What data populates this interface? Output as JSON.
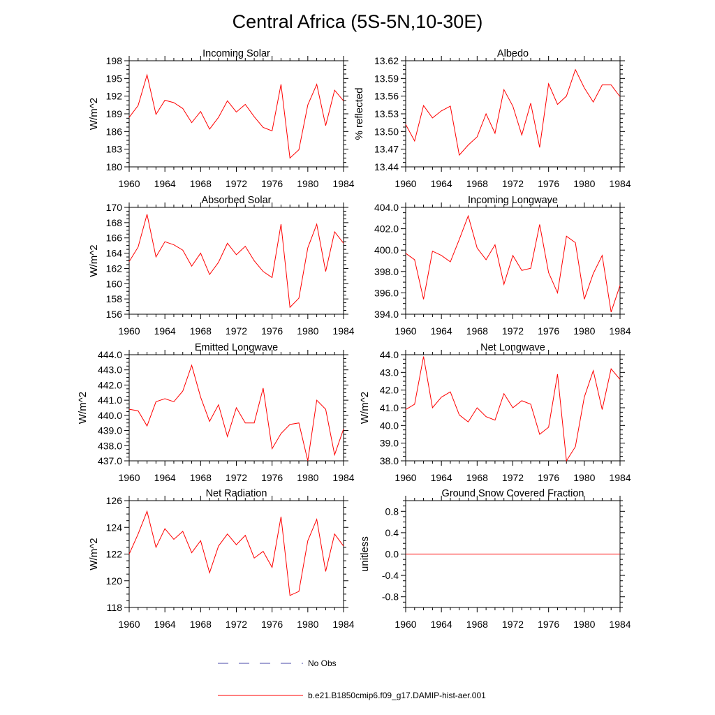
{
  "figure": {
    "title": "Central Africa (5S-5N,10-30E)"
  },
  "legend": {
    "entries": [
      {
        "name": "No Obs",
        "color": "#4a4aa8",
        "dash": true
      },
      {
        "name": "b.e21.B1850cmip6.f09_g17.DAMIP-hist-aer.001",
        "color": "#ff0000",
        "dash": false
      }
    ]
  },
  "chart_data": [
    {
      "type": "line",
      "title": "Incoming Solar",
      "ylabel": "W/m^2",
      "xlim": [
        1960,
        1984
      ],
      "ylim": [
        180,
        198
      ],
      "xticks": [
        1960,
        1964,
        1968,
        1972,
        1976,
        1980,
        1984
      ],
      "yticks": [
        "180",
        "183",
        "186",
        "189",
        "192",
        "195",
        "198"
      ],
      "x": [
        1960,
        1961,
        1962,
        1963,
        1964,
        1965,
        1966,
        1967,
        1968,
        1969,
        1970,
        1971,
        1972,
        1973,
        1974,
        1975,
        1976,
        1977,
        1978,
        1979,
        1980,
        1981,
        1982,
        1983,
        1984
      ],
      "series": [
        {
          "name": "b.e21.B1850cmip6.f09_g17.DAMIP-hist-aer.001",
          "color": "#ff0000",
          "values": [
            188.4,
            190.4,
            195.6,
            188.9,
            191.3,
            190.9,
            189.9,
            187.5,
            189.4,
            186.4,
            188.4,
            191.2,
            189.3,
            190.6,
            188.5,
            186.7,
            186.1,
            194.0,
            181.5,
            182.9,
            190.5,
            194.0,
            187.0,
            193.0,
            191.2
          ]
        }
      ]
    },
    {
      "type": "line",
      "title": "Albedo",
      "ylabel": "% reflected",
      "xlim": [
        1960,
        1984
      ],
      "ylim": [
        13.44,
        13.62
      ],
      "xticks": [
        1960,
        1964,
        1968,
        1972,
        1976,
        1980,
        1984
      ],
      "yticks": [
        "13.44",
        "13.47",
        "13.50",
        "13.53",
        "13.56",
        "13.59",
        "13.62"
      ],
      "x": [
        1960,
        1961,
        1962,
        1963,
        1964,
        1965,
        1966,
        1967,
        1968,
        1969,
        1970,
        1971,
        1972,
        1973,
        1974,
        1975,
        1976,
        1977,
        1978,
        1979,
        1980,
        1981,
        1982,
        1983,
        1984
      ],
      "series": [
        {
          "name": "b.e21.B1850cmip6.f09_g17.DAMIP-hist-aer.001",
          "color": "#ff0000",
          "values": [
            13.512,
            13.484,
            13.544,
            13.523,
            13.535,
            13.543,
            13.46,
            13.477,
            13.491,
            13.53,
            13.497,
            13.571,
            13.543,
            13.494,
            13.548,
            13.473,
            13.581,
            13.546,
            13.56,
            13.605,
            13.574,
            13.55,
            13.579,
            13.579,
            13.559
          ]
        }
      ]
    },
    {
      "type": "line",
      "title": "Absorbed Solar",
      "ylabel": "W/m^2",
      "xlim": [
        1960,
        1984
      ],
      "ylim": [
        156,
        170
      ],
      "xticks": [
        1960,
        1964,
        1968,
        1972,
        1976,
        1980,
        1984
      ],
      "yticks": [
        "156",
        "158",
        "160",
        "162",
        "164",
        "166",
        "168",
        "170"
      ],
      "x": [
        1960,
        1961,
        1962,
        1963,
        1964,
        1965,
        1966,
        1967,
        1968,
        1969,
        1970,
        1971,
        1972,
        1973,
        1974,
        1975,
        1976,
        1977,
        1978,
        1979,
        1980,
        1981,
        1982,
        1983,
        1984
      ],
      "series": [
        {
          "name": "b.e21.B1850cmip6.f09_g17.DAMIP-hist-aer.001",
          "color": "#ff0000",
          "values": [
            162.9,
            164.8,
            169.1,
            163.5,
            165.5,
            165.1,
            164.4,
            162.3,
            164.0,
            161.2,
            162.8,
            165.3,
            163.8,
            164.9,
            163.0,
            161.6,
            160.8,
            167.8,
            156.9,
            158.1,
            164.7,
            167.8,
            161.6,
            166.8,
            165.3
          ]
        }
      ]
    },
    {
      "type": "line",
      "title": "Incoming Longwave",
      "ylabel": "",
      "xlim": [
        1960,
        1984
      ],
      "ylim": [
        394.0,
        404.0
      ],
      "xticks": [
        1960,
        1964,
        1968,
        1972,
        1976,
        1980,
        1984
      ],
      "yticks": [
        "394.0",
        "396.0",
        "398.0",
        "400.0",
        "402.0",
        "404.0"
      ],
      "x": [
        1960,
        1961,
        1962,
        1963,
        1964,
        1965,
        1966,
        1967,
        1968,
        1969,
        1970,
        1971,
        1972,
        1973,
        1974,
        1975,
        1976,
        1977,
        1978,
        1979,
        1980,
        1981,
        1982,
        1983,
        1984
      ],
      "series": [
        {
          "name": "b.e21.B1850cmip6.f09_g17.DAMIP-hist-aer.001",
          "color": "#ff0000",
          "values": [
            399.7,
            399.1,
            395.4,
            399.9,
            399.5,
            398.9,
            401.0,
            403.2,
            400.2,
            399.1,
            400.5,
            396.8,
            399.5,
            398.1,
            398.3,
            402.4,
            397.9,
            396.0,
            401.3,
            400.7,
            395.4,
            397.8,
            399.5,
            394.2,
            396.7
          ]
        }
      ]
    },
    {
      "type": "line",
      "title": "Emitted Longwave",
      "ylabel": "W/m^2",
      "xlim": [
        1960,
        1984
      ],
      "ylim": [
        437.0,
        444.0
      ],
      "xticks": [
        1960,
        1964,
        1968,
        1972,
        1976,
        1980,
        1984
      ],
      "yticks": [
        "437.0",
        "438.0",
        "439.0",
        "440.0",
        "441.0",
        "442.0",
        "443.0",
        "444.0"
      ],
      "x": [
        1960,
        1961,
        1962,
        1963,
        1964,
        1965,
        1966,
        1967,
        1968,
        1969,
        1970,
        1971,
        1972,
        1973,
        1974,
        1975,
        1976,
        1977,
        1978,
        1979,
        1980,
        1981,
        1982,
        1983,
        1984
      ],
      "series": [
        {
          "name": "b.e21.B1850cmip6.f09_g17.DAMIP-hist-aer.001",
          "color": "#ff0000",
          "values": [
            440.4,
            440.3,
            439.3,
            440.9,
            441.1,
            440.9,
            441.6,
            443.3,
            441.2,
            439.6,
            440.7,
            438.6,
            440.5,
            439.5,
            439.5,
            441.8,
            437.8,
            438.8,
            439.4,
            439.5,
            437.0,
            441.0,
            440.4,
            437.4,
            439.1
          ]
        }
      ]
    },
    {
      "type": "line",
      "title": "Net Longwave",
      "ylabel": "W/m^2",
      "xlim": [
        1960,
        1984
      ],
      "ylim": [
        38.0,
        44.0
      ],
      "xticks": [
        1960,
        1964,
        1968,
        1972,
        1976,
        1980,
        1984
      ],
      "yticks": [
        "38.0",
        "39.0",
        "40.0",
        "41.0",
        "42.0",
        "43.0",
        "44.0"
      ],
      "x": [
        1960,
        1961,
        1962,
        1963,
        1964,
        1965,
        1966,
        1967,
        1968,
        1969,
        1970,
        1971,
        1972,
        1973,
        1974,
        1975,
        1976,
        1977,
        1978,
        1979,
        1980,
        1981,
        1982,
        1983,
        1984
      ],
      "series": [
        {
          "name": "b.e21.B1850cmip6.f09_g17.DAMIP-hist-aer.001",
          "color": "#ff0000",
          "values": [
            40.9,
            41.2,
            43.9,
            41.0,
            41.6,
            41.9,
            40.6,
            40.2,
            41.0,
            40.5,
            40.3,
            41.8,
            41.0,
            41.4,
            41.2,
            39.5,
            39.9,
            42.9,
            38.0,
            38.8,
            41.6,
            43.1,
            40.9,
            43.2,
            42.6
          ]
        }
      ]
    },
    {
      "type": "line",
      "title": "Net Radiation",
      "ylabel": "W/m^2",
      "xlim": [
        1960,
        1984
      ],
      "ylim": [
        118,
        126
      ],
      "xticks": [
        1960,
        1964,
        1968,
        1972,
        1976,
        1980,
        1984
      ],
      "yticks": [
        "118",
        "120",
        "122",
        "124",
        "126"
      ],
      "x": [
        1960,
        1961,
        1962,
        1963,
        1964,
        1965,
        1966,
        1967,
        1968,
        1969,
        1970,
        1971,
        1972,
        1973,
        1974,
        1975,
        1976,
        1977,
        1978,
        1979,
        1980,
        1981,
        1982,
        1983,
        1984
      ],
      "series": [
        {
          "name": "b.e21.B1850cmip6.f09_g17.DAMIP-hist-aer.001",
          "color": "#ff0000",
          "values": [
            122.0,
            123.5,
            125.2,
            122.5,
            123.9,
            123.1,
            123.7,
            122.1,
            123.0,
            120.6,
            122.6,
            123.5,
            122.7,
            123.4,
            121.7,
            122.2,
            121.0,
            124.8,
            118.9,
            119.2,
            123.0,
            124.6,
            120.7,
            123.5,
            122.6
          ]
        }
      ]
    },
    {
      "type": "line",
      "title": "Ground Snow Covered Fraction",
      "ylabel": "unitless",
      "xlim": [
        1960,
        1984
      ],
      "ylim": [
        -1.0,
        1.0
      ],
      "xticks": [
        1960,
        1964,
        1968,
        1972,
        1976,
        1980,
        1984
      ],
      "yticks": [
        "-0.8",
        "-0.4",
        "0.0",
        "0.4",
        "0.8"
      ],
      "x": [
        1960,
        1961,
        1962,
        1963,
        1964,
        1965,
        1966,
        1967,
        1968,
        1969,
        1970,
        1971,
        1972,
        1973,
        1974,
        1975,
        1976,
        1977,
        1978,
        1979,
        1980,
        1981,
        1982,
        1983,
        1984
      ],
      "series": [
        {
          "name": "b.e21.B1850cmip6.f09_g17.DAMIP-hist-aer.001",
          "color": "#ff0000",
          "values": [
            0,
            0,
            0,
            0,
            0,
            0,
            0,
            0,
            0,
            0,
            0,
            0,
            0,
            0,
            0,
            0,
            0,
            0,
            0,
            0,
            0,
            0,
            0,
            0,
            0
          ]
        }
      ]
    }
  ]
}
